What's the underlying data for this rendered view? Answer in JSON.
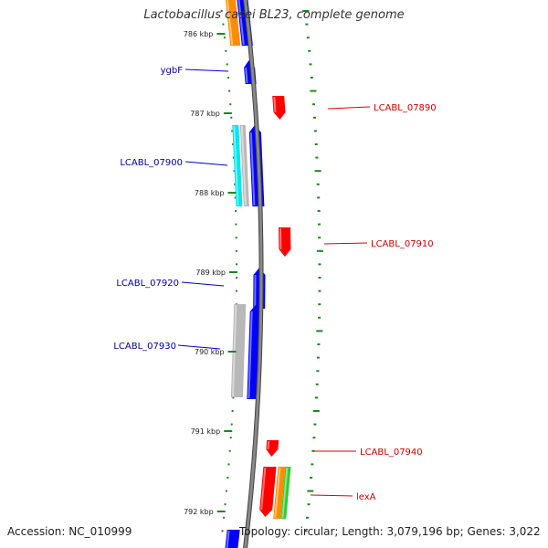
{
  "title": "Lactobacillus casei BL23, complete genome",
  "footer": {
    "accession_label": "Accession:",
    "accession": "NC_010999",
    "topology_label": "Topology:",
    "topology": "circular",
    "length_label": "Length:",
    "length": "3,079,196 bp",
    "genes_label": "Genes:",
    "genes": "3,022"
  },
  "colors": {
    "background": "#ffffff",
    "backbone": "#888888",
    "tick_marks": "#1a8a1a",
    "forward_gene": "#0000ff",
    "reverse_gene": "#ff0000",
    "other_orange": "#ff8c00",
    "other_cyan": "#00e5ee",
    "other_grey": "#b8b8b8",
    "other_green": "#33cc33"
  },
  "ticks": [
    {
      "label": "786 kbp"
    },
    {
      "label": "787 kbp"
    },
    {
      "label": "788 kbp"
    },
    {
      "label": "789 kbp"
    },
    {
      "label": "790 kbp"
    },
    {
      "label": "791 kbp"
    },
    {
      "label": "792 kbp"
    }
  ],
  "gene_labels": [
    {
      "name": "ygbF",
      "strand": "forward"
    },
    {
      "name": "LCABL_07890",
      "strand": "reverse"
    },
    {
      "name": "LCABL_07900",
      "strand": "forward"
    },
    {
      "name": "LCABL_07910",
      "strand": "reverse"
    },
    {
      "name": "LCABL_07920",
      "strand": "forward"
    },
    {
      "name": "LCABL_07930",
      "strand": "forward"
    },
    {
      "name": "LCABL_07940",
      "strand": "reverse"
    },
    {
      "name": "lexA",
      "strand": "reverse"
    }
  ]
}
